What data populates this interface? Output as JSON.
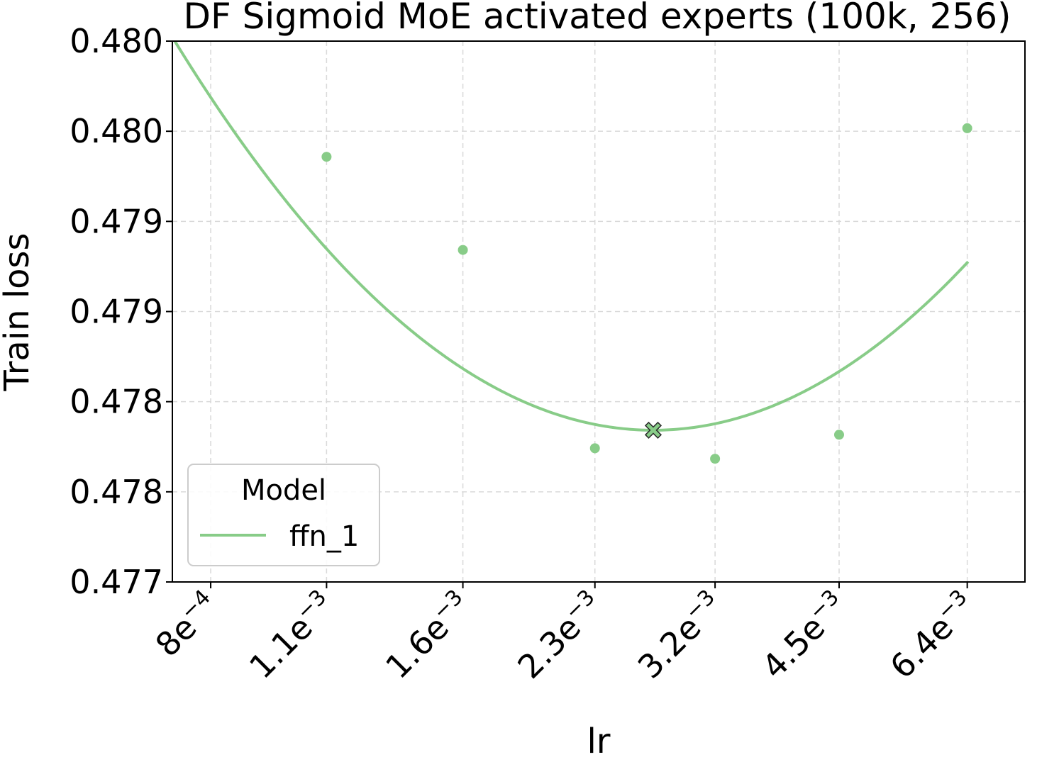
{
  "chart_data": {
    "type": "line",
    "title": "DF Sigmoid MoE activated experts (100k, 256)",
    "xlabel": "lr",
    "ylabel": "Train loss",
    "x_scale": "log",
    "x_ticks": [
      {
        "value": 0.0008,
        "mantissa": "8e",
        "exponent": "−4"
      },
      {
        "value": 0.0011,
        "mantissa": "1.1e",
        "exponent": "−3"
      },
      {
        "value": 0.0016,
        "mantissa": "1.6e",
        "exponent": "−3"
      },
      {
        "value": 0.0023,
        "mantissa": "2.3e",
        "exponent": "−3"
      },
      {
        "value": 0.0032,
        "mantissa": "3.2e",
        "exponent": "−3"
      },
      {
        "value": 0.0045,
        "mantissa": "4.5e",
        "exponent": "−3"
      },
      {
        "value": 0.0064,
        "mantissa": "6.4e",
        "exponent": "−3"
      }
    ],
    "xlim": [
      0.00072,
      0.0075
    ],
    "ylim": [
      0.477,
      0.4806
    ],
    "y_ticks": [
      {
        "value": 0.477,
        "label": "0.477"
      },
      {
        "value": 0.4776,
        "label": "0.478"
      },
      {
        "value": 0.4782,
        "label": "0.478"
      },
      {
        "value": 0.4788,
        "label": "0.479"
      },
      {
        "value": 0.4794,
        "label": "0.479"
      },
      {
        "value": 0.48,
        "label": "0.480"
      },
      {
        "value": 0.4806,
        "label": "0.480"
      }
    ],
    "grid": true,
    "legend": {
      "title": "Model",
      "placement": "lower-left",
      "entries": [
        "ffn_1"
      ]
    },
    "series": [
      {
        "name": "ffn_1",
        "color": "#88cc88",
        "points": [
          {
            "x": 0.0011,
            "y": 0.47983
          },
          {
            "x": 0.0016,
            "y": 0.47921
          },
          {
            "x": 0.0023,
            "y": 0.47789
          },
          {
            "x": 0.0032,
            "y": 0.47782
          },
          {
            "x": 0.0045,
            "y": 0.47798
          },
          {
            "x": 0.0064,
            "y": 0.48002
          }
        ],
        "fit": {
          "form": "quadratic in log10(lr)",
          "vertex_x": 0.0027,
          "vertex_y": 0.47801,
          "curvature": 0.00794
        },
        "optimum": {
          "x": 0.0027,
          "y": 0.47801
        }
      }
    ]
  }
}
